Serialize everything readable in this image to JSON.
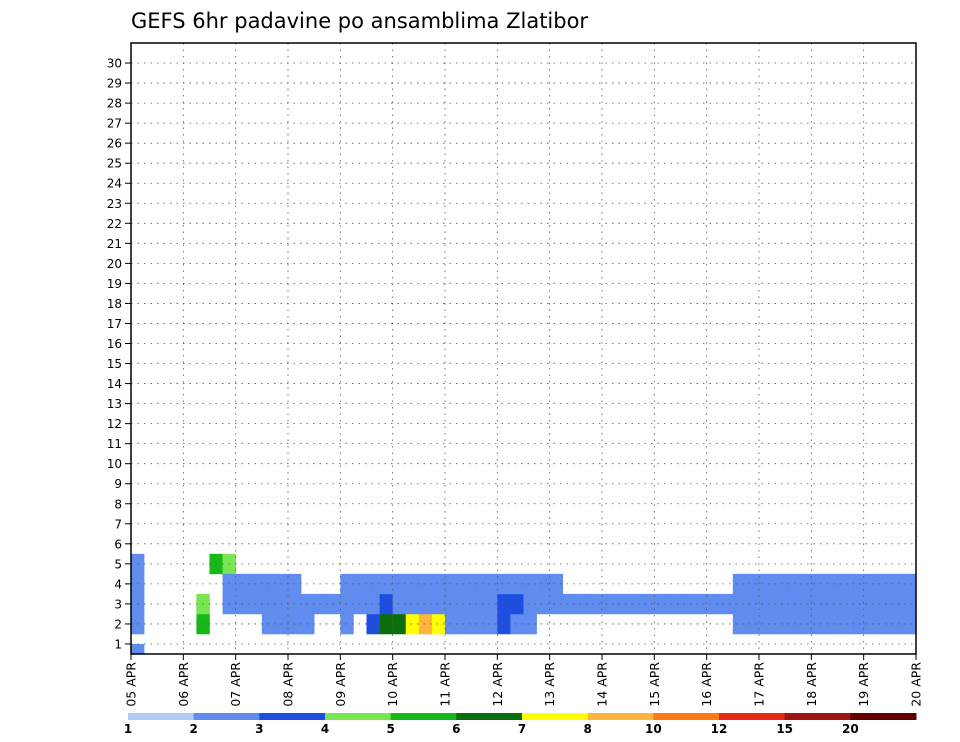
{
  "chart_data": {
    "type": "heatmap",
    "title": "GEFS 6hr padavine po ansamblima Zlatibor",
    "xlabel": "",
    "ylabel": "",
    "y_ticks": [
      "1",
      "2",
      "3",
      "4",
      "5",
      "6",
      "7",
      "8",
      "9",
      "10",
      "11",
      "12",
      "13",
      "14",
      "15",
      "16",
      "17",
      "18",
      "19",
      "20",
      "21",
      "22",
      "23",
      "24",
      "25",
      "26",
      "27",
      "28",
      "29",
      "30"
    ],
    "x_ticks": [
      "05 APR",
      "06 APR",
      "07 APR",
      "08 APR",
      "09 APR",
      "10 APR",
      "11 APR",
      "12 APR",
      "13 APR",
      "14 APR",
      "15 APR",
      "16 APR",
      "17 APR",
      "18 APR",
      "19 APR",
      "20 APR"
    ],
    "x_steps_per_day": 4,
    "grid": "dotted",
    "colorbar": {
      "labels": [
        "1",
        "2",
        "3",
        "4",
        "5",
        "6",
        "7",
        "8",
        "10",
        "12",
        "15",
        "20"
      ],
      "colors": [
        "#b4c8f5",
        "#5f8cee",
        "#1e4ee0",
        "#78e650",
        "#18b818",
        "#0a6e0a",
        "#ffff00",
        "#ffb43c",
        "#ff7814",
        "#e62814",
        "#a01414",
        "#640000"
      ]
    },
    "cells": [
      [
        0,
        0,
        1
      ],
      [
        5,
        1,
        4
      ],
      [
        5,
        2,
        3
      ],
      [
        6,
        4,
        4
      ],
      [
        7,
        4,
        3
      ],
      [
        10,
        1,
        1
      ],
      [
        11,
        1,
        1
      ],
      [
        12,
        1,
        1
      ],
      [
        13,
        1,
        1
      ],
      [
        16,
        1,
        1
      ],
      [
        18,
        1,
        2
      ],
      [
        19,
        1,
        5
      ],
      [
        20,
        1,
        5
      ],
      [
        21,
        1,
        6
      ],
      [
        22,
        1,
        7
      ],
      [
        23,
        1,
        6
      ],
      [
        26,
        1,
        1
      ],
      [
        27,
        1,
        1
      ],
      [
        28,
        1,
        2
      ],
      [
        29,
        1,
        1
      ],
      [
        30,
        1,
        1
      ],
      [
        0,
        1,
        1
      ],
      [
        0,
        2,
        1
      ],
      [
        0,
        3,
        1
      ],
      [
        0,
        4,
        1
      ],
      [
        7,
        2,
        1
      ],
      [
        7,
        3,
        1
      ],
      [
        8,
        2,
        1
      ],
      [
        8,
        3,
        1
      ],
      [
        9,
        2,
        1
      ],
      [
        9,
        3,
        1
      ],
      [
        10,
        2,
        1
      ],
      [
        10,
        3,
        1
      ],
      [
        11,
        2,
        1
      ],
      [
        11,
        3,
        1
      ],
      [
        12,
        2,
        1
      ],
      [
        12,
        3,
        1
      ],
      [
        13,
        2,
        1
      ],
      [
        14,
        2,
        1
      ],
      [
        15,
        2,
        1
      ],
      [
        16,
        2,
        1
      ],
      [
        16,
        3,
        1
      ],
      [
        17,
        2,
        1
      ],
      [
        17,
        3,
        1
      ],
      [
        18,
        2,
        1
      ],
      [
        18,
        3,
        1
      ],
      [
        19,
        2,
        2
      ],
      [
        19,
        3,
        1
      ],
      [
        20,
        2,
        1
      ],
      [
        20,
        3,
        1
      ],
      [
        21,
        2,
        1
      ],
      [
        21,
        3,
        1
      ],
      [
        22,
        2,
        1
      ],
      [
        22,
        3,
        1
      ],
      [
        23,
        2,
        1
      ],
      [
        23,
        3,
        1
      ],
      [
        24,
        1,
        1
      ],
      [
        24,
        2,
        1
      ],
      [
        24,
        3,
        1
      ],
      [
        25,
        1,
        1
      ],
      [
        25,
        2,
        1
      ],
      [
        25,
        3,
        1
      ],
      [
        26,
        2,
        1
      ],
      [
        26,
        3,
        1
      ],
      [
        27,
        2,
        1
      ],
      [
        27,
        3,
        1
      ],
      [
        28,
        2,
        2
      ],
      [
        28,
        3,
        1
      ],
      [
        29,
        2,
        2
      ],
      [
        29,
        3,
        1
      ],
      [
        30,
        2,
        1
      ],
      [
        30,
        3,
        1
      ],
      [
        31,
        2,
        1
      ],
      [
        31,
        3,
        1
      ],
      [
        32,
        2,
        1
      ],
      [
        32,
        3,
        1
      ],
      [
        33,
        2,
        1
      ],
      [
        34,
        2,
        1
      ],
      [
        35,
        2,
        1
      ],
      [
        36,
        2,
        1
      ],
      [
        37,
        2,
        1
      ],
      [
        38,
        2,
        1
      ],
      [
        39,
        2,
        1
      ],
      [
        40,
        2,
        1
      ],
      [
        41,
        2,
        1
      ],
      [
        42,
        2,
        1
      ],
      [
        43,
        2,
        1
      ],
      [
        44,
        2,
        1
      ],
      [
        45,
        2,
        1
      ],
      [
        46,
        1,
        1
      ],
      [
        46,
        2,
        1
      ],
      [
        46,
        3,
        1
      ],
      [
        47,
        1,
        1
      ],
      [
        47,
        2,
        1
      ],
      [
        47,
        3,
        1
      ],
      [
        48,
        1,
        1
      ],
      [
        48,
        2,
        1
      ],
      [
        48,
        3,
        1
      ],
      [
        49,
        1,
        1
      ],
      [
        49,
        2,
        1
      ],
      [
        49,
        3,
        1
      ],
      [
        50,
        1,
        1
      ],
      [
        50,
        2,
        1
      ],
      [
        50,
        3,
        1
      ],
      [
        51,
        1,
        1
      ],
      [
        51,
        2,
        1
      ],
      [
        51,
        3,
        1
      ],
      [
        52,
        1,
        1
      ],
      [
        52,
        2,
        1
      ],
      [
        52,
        3,
        1
      ],
      [
        53,
        1,
        1
      ],
      [
        53,
        2,
        1
      ],
      [
        53,
        3,
        1
      ],
      [
        54,
        1,
        1
      ],
      [
        54,
        2,
        1
      ],
      [
        54,
        3,
        1
      ],
      [
        55,
        1,
        1
      ],
      [
        55,
        2,
        1
      ],
      [
        55,
        3,
        1
      ],
      [
        56,
        1,
        1
      ],
      [
        56,
        2,
        1
      ],
      [
        56,
        3,
        1
      ],
      [
        57,
        1,
        1
      ],
      [
        57,
        2,
        1
      ],
      [
        57,
        3,
        1
      ],
      [
        58,
        1,
        1
      ],
      [
        58,
        2,
        1
      ],
      [
        58,
        3,
        1
      ],
      [
        59,
        1,
        1
      ],
      [
        59,
        2,
        1
      ],
      [
        59,
        3,
        1
      ],
      [
        60,
        1,
        1
      ],
      [
        60,
        2,
        1
      ],
      [
        60,
        3,
        1
      ],
      [
        61,
        1,
        1
      ],
      [
        61,
        2,
        1
      ],
      [
        61,
        3,
        1
      ],
      [
        62,
        1,
        1
      ],
      [
        62,
        2,
        1
      ],
      [
        62,
        3,
        1
      ],
      [
        63,
        1,
        1
      ],
      [
        63,
        2,
        1
      ],
      [
        63,
        3,
        1
      ],
      [
        64,
        1,
        1
      ],
      [
        64,
        2,
        1
      ],
      [
        64,
        3,
        1
      ],
      [
        65,
        1,
        1
      ],
      [
        65,
        2,
        1
      ],
      [
        65,
        3,
        1
      ],
      [
        66,
        1,
        1
      ],
      [
        66,
        2,
        1
      ],
      [
        66,
        3,
        1
      ],
      [
        67,
        1,
        1
      ],
      [
        67,
        2,
        1
      ],
      [
        67,
        3,
        1
      ],
      [
        68,
        1,
        1
      ],
      [
        68,
        2,
        1
      ],
      [
        68,
        3,
        1
      ],
      [
        69,
        1,
        1
      ],
      [
        69,
        2,
        1
      ],
      [
        69,
        3,
        1
      ],
      [
        70,
        1,
        1
      ],
      [
        70,
        2,
        1
      ],
      [
        70,
        3,
        1
      ],
      [
        71,
        1,
        1
      ],
      [
        71,
        2,
        1
      ],
      [
        71,
        3,
        1
      ],
      [
        72,
        1,
        1
      ],
      [
        72,
        2,
        1
      ],
      [
        72,
        3,
        1
      ],
      [
        73,
        1,
        1
      ],
      [
        73,
        2,
        1
      ],
      [
        73,
        3,
        1
      ],
      [
        74,
        1,
        1
      ],
      [
        74,
        2,
        1
      ],
      [
        74,
        3,
        1
      ],
      [
        75,
        1,
        1
      ],
      [
        75,
        2,
        1
      ],
      [
        75,
        3,
        1
      ],
      [
        76,
        1,
        1
      ],
      [
        76,
        2,
        1
      ],
      [
        76,
        3,
        1
      ],
      [
        77,
        1,
        1
      ],
      [
        77,
        2,
        1
      ],
      [
        77,
        3,
        1
      ],
      [
        78,
        1,
        1
      ],
      [
        78,
        2,
        1
      ],
      [
        78,
        3,
        1
      ],
      [
        79,
        1,
        1
      ],
      [
        79,
        2,
        1
      ],
      [
        79,
        3,
        1
      ],
      [
        80,
        1,
        1
      ],
      [
        80,
        2,
        1
      ],
      [
        80,
        3,
        1
      ],
      [
        81,
        1,
        1
      ],
      [
        81,
        2,
        1
      ],
      [
        81,
        3,
        1
      ],
      [
        82,
        1,
        1
      ],
      [
        82,
        2,
        1
      ],
      [
        82,
        3,
        1
      ],
      [
        83,
        1,
        1
      ],
      [
        83,
        2,
        1
      ],
      [
        83,
        3,
        1
      ],
      [
        84,
        1,
        1
      ],
      [
        84,
        2,
        1
      ],
      [
        84,
        3,
        1
      ],
      [
        85,
        1,
        1
      ],
      [
        85,
        2,
        1
      ],
      [
        85,
        3,
        1
      ],
      [
        86,
        1,
        1
      ],
      [
        86,
        2,
        1
      ],
      [
        86,
        3,
        1
      ],
      [
        87,
        1,
        1
      ],
      [
        87,
        2,
        1
      ],
      [
        87,
        3,
        1
      ],
      [
        88,
        1,
        1
      ],
      [
        88,
        2,
        1
      ],
      [
        88,
        3,
        1
      ],
      [
        89,
        1,
        1
      ],
      [
        89,
        2,
        1
      ],
      [
        89,
        3,
        1
      ],
      [
        90,
        1,
        1
      ],
      [
        90,
        2,
        1
      ],
      [
        90,
        3,
        1
      ],
      [
        91,
        1,
        1
      ],
      [
        91,
        2,
        1
      ],
      [
        91,
        3,
        1
      ],
      [
        92,
        1,
        1
      ],
      [
        92,
        2,
        1
      ],
      [
        92,
        3,
        1
      ],
      [
        93,
        1,
        1
      ],
      [
        93,
        2,
        1
      ],
      [
        93,
        3,
        1
      ],
      [
        94,
        1,
        1
      ],
      [
        94,
        2,
        1
      ],
      [
        94,
        3,
        1
      ],
      [
        95,
        1,
        1
      ],
      [
        95,
        2,
        1
      ],
      [
        95,
        3,
        1
      ],
      [
        96,
        1,
        1
      ],
      [
        96,
        2,
        1
      ],
      [
        96,
        3,
        1
      ],
      [
        97,
        1,
        1
      ],
      [
        97,
        2,
        1
      ],
      [
        97,
        3,
        1
      ],
      [
        98,
        1,
        1
      ],
      [
        98,
        2,
        1
      ],
      [
        98,
        3,
        1
      ],
      [
        99,
        1,
        1
      ],
      [
        99,
        2,
        1
      ],
      [
        99,
        3,
        1
      ],
      [
        100,
        1,
        1
      ],
      [
        100,
        2,
        1
      ],
      [
        100,
        3,
        1
      ],
      [
        101,
        1,
        1
      ],
      [
        101,
        2,
        1
      ],
      [
        101,
        3,
        1
      ],
      [
        102,
        1,
        1
      ],
      [
        102,
        2,
        1
      ],
      [
        102,
        3,
        1
      ],
      [
        103,
        1,
        1
      ],
      [
        103,
        2,
        1
      ],
      [
        103,
        3,
        1
      ]
    ]
  }
}
